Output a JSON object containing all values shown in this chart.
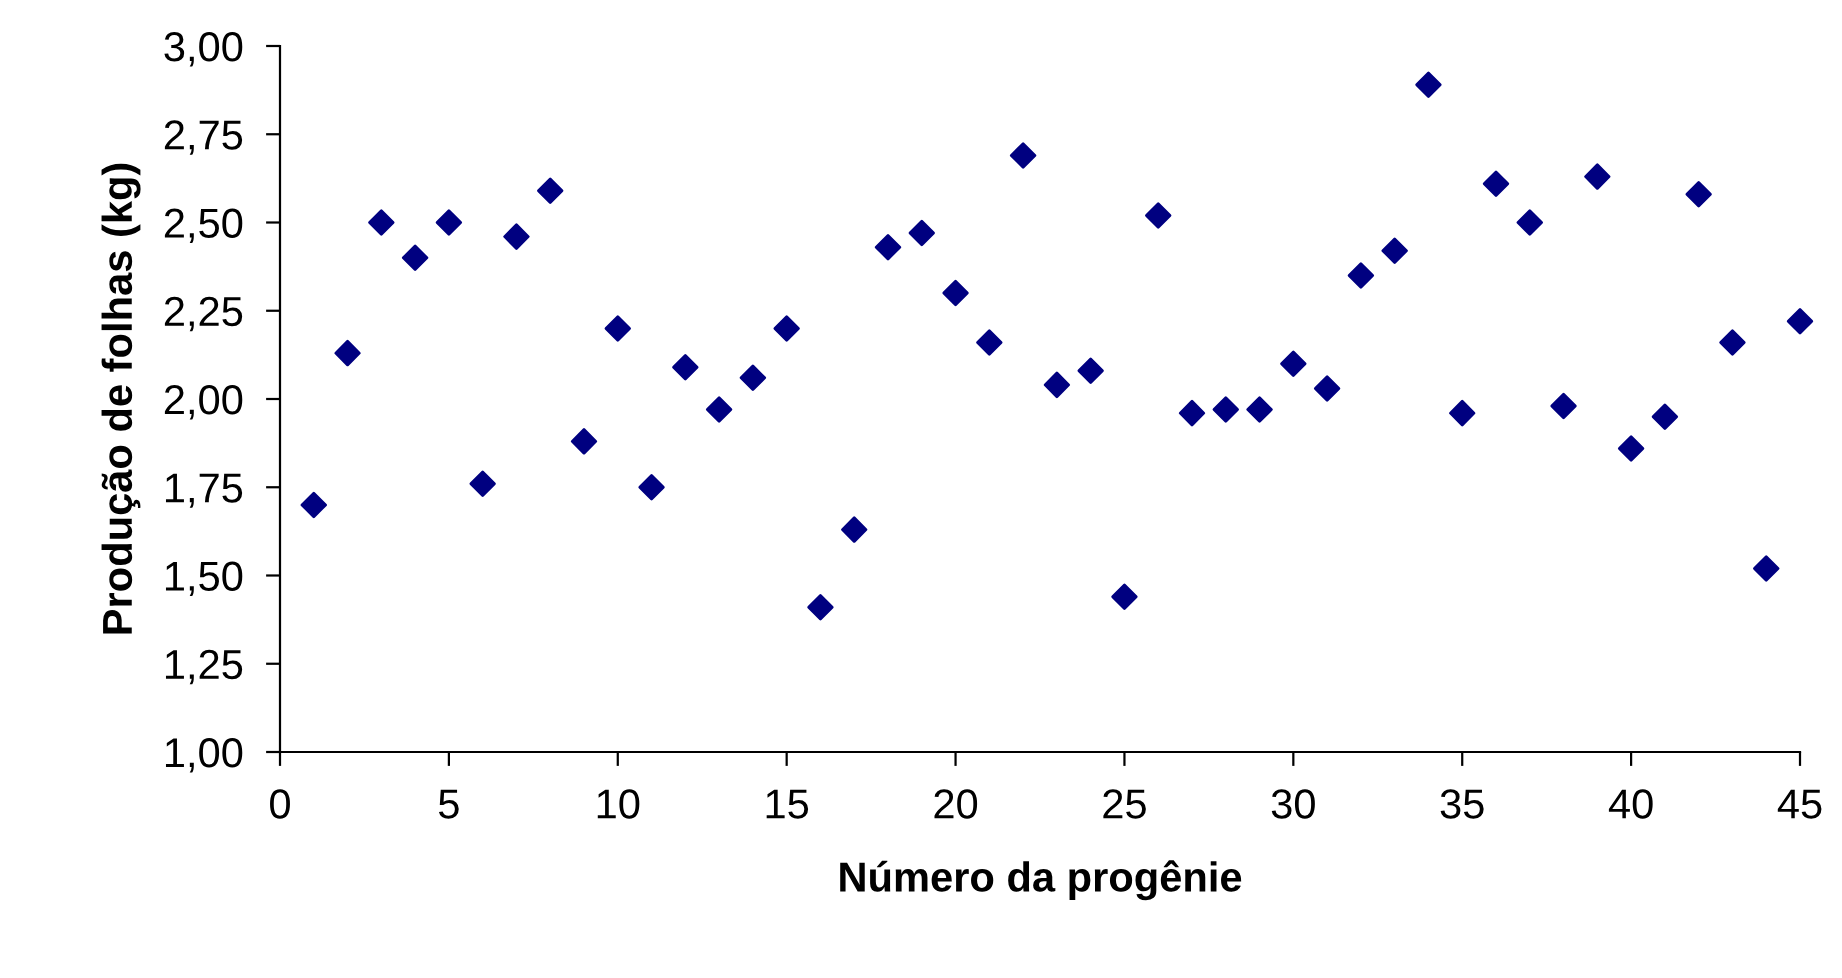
{
  "chart_data": {
    "type": "scatter",
    "xlabel": "Número da progênie",
    "ylabel": "Produção de folhas (kg)",
    "x": [
      1,
      2,
      3,
      4,
      5,
      6,
      7,
      8,
      9,
      10,
      11,
      12,
      13,
      14,
      15,
      16,
      17,
      18,
      19,
      20,
      21,
      22,
      23,
      24,
      25,
      26,
      27,
      28,
      29,
      30,
      31,
      32,
      33,
      34,
      35,
      36,
      37,
      38,
      39,
      40,
      41,
      42,
      43,
      44,
      45
    ],
    "series": [
      {
        "color": "#000080",
        "values": [
          1.7,
          2.13,
          2.5,
          2.4,
          2.5,
          1.76,
          2.46,
          2.59,
          1.88,
          2.2,
          1.75,
          2.09,
          1.97,
          2.06,
          2.2,
          1.41,
          1.63,
          2.43,
          2.47,
          2.3,
          2.16,
          2.69,
          2.04,
          2.08,
          1.44,
          2.52,
          1.96,
          1.97,
          1.97,
          2.1,
          2.03,
          2.35,
          2.42,
          2.89,
          1.96,
          2.61,
          2.5,
          1.98,
          2.63,
          1.86,
          1.95,
          2.58,
          2.16,
          1.52,
          2.22
        ]
      }
    ],
    "xlim": [
      0,
      45
    ],
    "xticks": [
      0,
      5,
      10,
      15,
      20,
      25,
      30,
      35,
      40,
      45
    ],
    "ylim": [
      1,
      3
    ],
    "yticks": [
      {
        "value": 1,
        "label": "1,00"
      },
      {
        "value": 1.25,
        "label": "1,25"
      },
      {
        "value": 1.5,
        "label": "1,50"
      },
      {
        "value": 1.75,
        "label": "1,75"
      },
      {
        "value": 2,
        "label": "2,00"
      },
      {
        "value": 2.25,
        "label": "2,25"
      },
      {
        "value": 2.5,
        "label": "2,50"
      },
      {
        "value": 2.75,
        "label": "2,75"
      },
      {
        "value": 3,
        "label": "3,00"
      }
    ],
    "grid": false,
    "legend": false,
    "marker": "diamond"
  }
}
